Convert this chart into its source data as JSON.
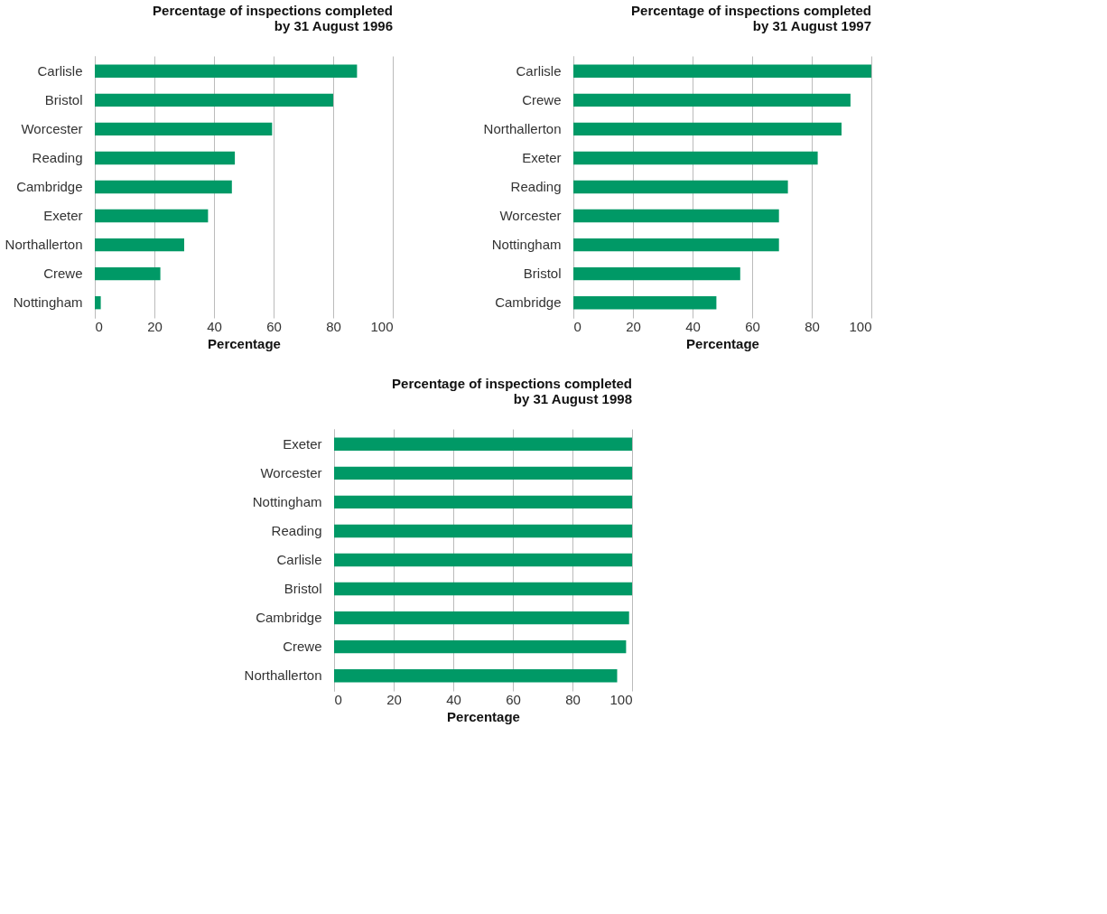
{
  "chart_data": [
    {
      "type": "bar",
      "orientation": "horizontal",
      "title": "Percentage of inspections completed\nby 31 August 1996",
      "xlabel": "Percentage",
      "categories": [
        "Carlisle",
        "Bristol",
        "Worcester",
        "Reading",
        "Cambridge",
        "Exeter",
        "Northallerton",
        "Crewe",
        "Nottingham"
      ],
      "values": [
        88,
        80,
        59.5,
        47,
        46,
        38,
        30,
        22,
        2
      ],
      "color": "#009966",
      "xlim": [
        0,
        100
      ],
      "xticks": [
        0,
        20,
        40,
        60,
        80,
        100
      ],
      "grid": "x"
    },
    {
      "type": "bar",
      "orientation": "horizontal",
      "title": "Percentage of inspections completed\nby 31 August 1997",
      "xlabel": "Percentage",
      "categories": [
        "Carlisle",
        "Crewe",
        "Northallerton",
        "Exeter",
        "Reading",
        "Worcester",
        "Nottingham",
        "Bristol",
        "Cambridge"
      ],
      "values": [
        100,
        93,
        90,
        82,
        72,
        69,
        69,
        56,
        48
      ],
      "color": "#009966",
      "xlim": [
        0,
        100
      ],
      "xticks": [
        0,
        20,
        40,
        60,
        80,
        100
      ],
      "grid": "x"
    },
    {
      "type": "bar",
      "orientation": "horizontal",
      "title": "Percentage of inspections completed\nby 31 August 1998",
      "xlabel": "Percentage",
      "categories": [
        "Exeter",
        "Worcester",
        "Nottingham",
        "Reading",
        "Carlisle",
        "Bristol",
        "Cambridge",
        "Crewe",
        "Northallerton"
      ],
      "values": [
        100,
        100,
        100,
        100,
        100,
        100,
        99,
        98,
        95
      ],
      "color": "#009966",
      "xlim": [
        0,
        100
      ],
      "xticks": [
        0,
        20,
        40,
        60,
        80,
        100
      ],
      "grid": "x"
    }
  ]
}
